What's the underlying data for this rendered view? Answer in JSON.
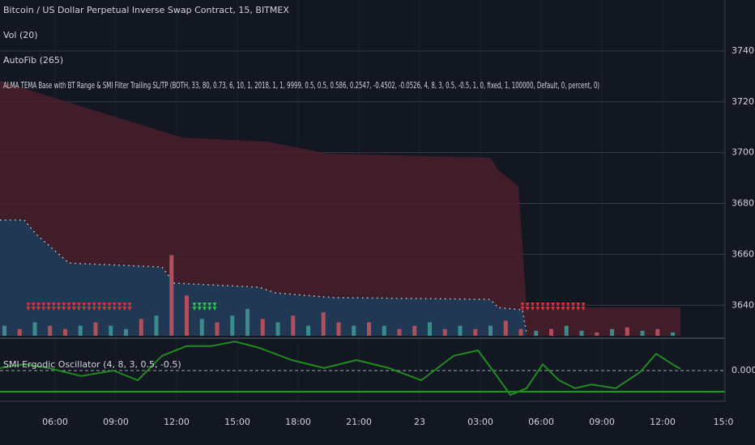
{
  "chart_data": [
    {
      "type": "price",
      "title": "Bitcoin / US Dollar Perpetual Inverse Swap Contract, 15, BITMEX",
      "indicators": [
        "Vol (20)",
        "AutoFib (265)",
        "ALMA TEMA Base with BT Range & SMI Filter Trailing SL/TP (BOTH, 33, 80, 0.73, 6, 10, 1, 2018, 1, 1, 9999, 0.5, 0.5, 0.586, 0.2547, -0.4502, -0.0526, 4, 8, 3, 0.5, -0.5, 1, 0, fixed, 1, 100000, Default, 0, percent, 0)"
      ],
      "xlim": [
        3.28,
        39.08
      ],
      "xticks": [
        {
          "value": 6,
          "label": "06:00"
        },
        {
          "value": 9,
          "label": "09:00"
        },
        {
          "value": 12,
          "label": "12:00"
        },
        {
          "value": 15,
          "label": "15:00"
        },
        {
          "value": 18,
          "label": "18:00"
        },
        {
          "value": 21,
          "label": "21:00"
        },
        {
          "value": 24,
          "label": "23"
        },
        {
          "value": 27,
          "label": "03:00"
        },
        {
          "value": 30,
          "label": "06:00"
        },
        {
          "value": 33,
          "label": "09:00"
        },
        {
          "value": 36,
          "label": "12:00"
        },
        {
          "value": 39,
          "label": "15:0"
        }
      ],
      "ylim": [
        3628,
        3760
      ],
      "yticks": [
        {
          "value": 3640,
          "label": "3640.0"
        },
        {
          "value": 3660,
          "label": "3660.0"
        },
        {
          "value": 3680,
          "label": "3680.0"
        },
        {
          "value": 3700,
          "label": "3700.0"
        },
        {
          "value": 3720,
          "label": "3720.0"
        },
        {
          "value": 3740,
          "label": "3740.0"
        }
      ],
      "y2lim": [
        0,
        100
      ],
      "grid": true,
      "series": [
        {
          "kind": "area",
          "color": "#4a1f2b",
          "x": [
            3.28,
            9.68,
            12.28,
            16.48,
            19.48,
            27.48,
            27.88,
            28.88,
            29.28,
            36.88
          ],
          "values": [
            3728.2,
            3712.3,
            3705.9,
            3704.3,
            3699.6,
            3698.0,
            3693.2,
            3686.8,
            3639.1,
            3639.1
          ]
        },
        {
          "kind": "area-dotted",
          "color": "#1f3a55",
          "x": [
            3.28,
            4.48,
            5.08,
            6.68,
            11.28,
            11.88,
            16.08,
            16.88,
            19.68,
            27.48,
            27.88,
            29.08,
            29.28
          ],
          "values": [
            3673.5,
            3673.5,
            3667.8,
            3656.6,
            3655.0,
            3648.7,
            3647.1,
            3644.9,
            3643.0,
            3642.3,
            3639.1,
            3638.2,
            3629.0
          ]
        },
        {
          "kind": "bar",
          "axis": "y2",
          "x": [
            3.5,
            4.25,
            5.0,
            5.75,
            6.5,
            7.25,
            8.0,
            8.75,
            9.5,
            10.25,
            11.0,
            11.75,
            12.5,
            13.25,
            14.0,
            14.75,
            15.5,
            16.25,
            17.0,
            17.75,
            18.5,
            19.25,
            20.0,
            20.75,
            21.5,
            22.25,
            23.0,
            23.75,
            24.5,
            25.25,
            26.0,
            26.75,
            27.5,
            28.25,
            29.0,
            29.75,
            30.5,
            31.25,
            32.0,
            32.75,
            33.5,
            34.25,
            35.0,
            35.75,
            36.5
          ],
          "values": [
            3,
            2,
            4,
            3,
            2,
            3,
            4,
            3,
            2,
            5,
            6,
            24,
            12,
            5,
            4,
            6,
            8,
            5,
            4,
            6,
            3,
            7,
            4,
            3,
            4,
            3,
            2,
            3,
            4,
            2,
            3,
            2,
            3,
            4.5,
            2,
            1.5,
            2,
            3,
            1.5,
            1,
            2,
            2.5,
            1.5,
            2,
            1
          ],
          "colors": [
            "#3a8c8c",
            "#b0505a",
            "#3a8c8c",
            "#b0505a",
            "#b0505a",
            "#3a8c8c",
            "#b0505a",
            "#3a8c8c",
            "#3a8c8c",
            "#b0505a",
            "#3a8c8c",
            "#b0505a",
            "#b0505a",
            "#3a8c8c",
            "#b0505a",
            "#3a8c8c",
            "#3a8c8c",
            "#b0505a",
            "#3a8c8c",
            "#b0505a",
            "#3a8c8c",
            "#b0505a",
            "#b0505a",
            "#3a8c8c",
            "#b0505a",
            "#3a8c8c",
            "#b0505a",
            "#b0505a",
            "#3a8c8c",
            "#b0505a",
            "#3a8c8c",
            "#b0505a",
            "#3a8c8c",
            "#b0505a",
            "#b0505a",
            "#3a8c8c",
            "#b0505a",
            "#3a8c8c",
            "#3a8c8c",
            "#b0505a",
            "#3a8c8c",
            "#b0505a",
            "#3a8c8c",
            "#b0505a",
            "#3a8c8c"
          ]
        }
      ]
    },
    {
      "type": "line",
      "title": "SMI Ergodic Oscillator (4, 8, 3, 0.5, -0.5)",
      "ylim": [
        -0.71,
        0.73
      ],
      "yticks": [
        {
          "value": 0,
          "label": "0.0000"
        }
      ],
      "hlines": [
        -0.5
      ],
      "hline_color": "#1aa31a",
      "series": [
        {
          "color": "#1e8c1e",
          "x": [
            3.28,
            4.48,
            5.68,
            7.28,
            8.88,
            10.08,
            11.28,
            12.48,
            13.68,
            14.88,
            16.08,
            17.68,
            19.28,
            20.88,
            22.48,
            24.08,
            25.68,
            26.88,
            27.68,
            28.48,
            29.28,
            30.08,
            30.88,
            31.68,
            32.48,
            33.68,
            34.88,
            35.68,
            36.48,
            36.88
          ],
          "values": [
            0.06,
            0.15,
            0.06,
            -0.13,
            0,
            -0.23,
            0.35,
            0.58,
            0.58,
            0.69,
            0.54,
            0.25,
            0.06,
            0.25,
            0.06,
            -0.23,
            0.35,
            0.48,
            -0.04,
            -0.58,
            -0.42,
            0.15,
            -0.23,
            -0.42,
            -0.33,
            -0.42,
            -0.04,
            0.4,
            0.15,
            0.04
          ]
        }
      ]
    }
  ]
}
